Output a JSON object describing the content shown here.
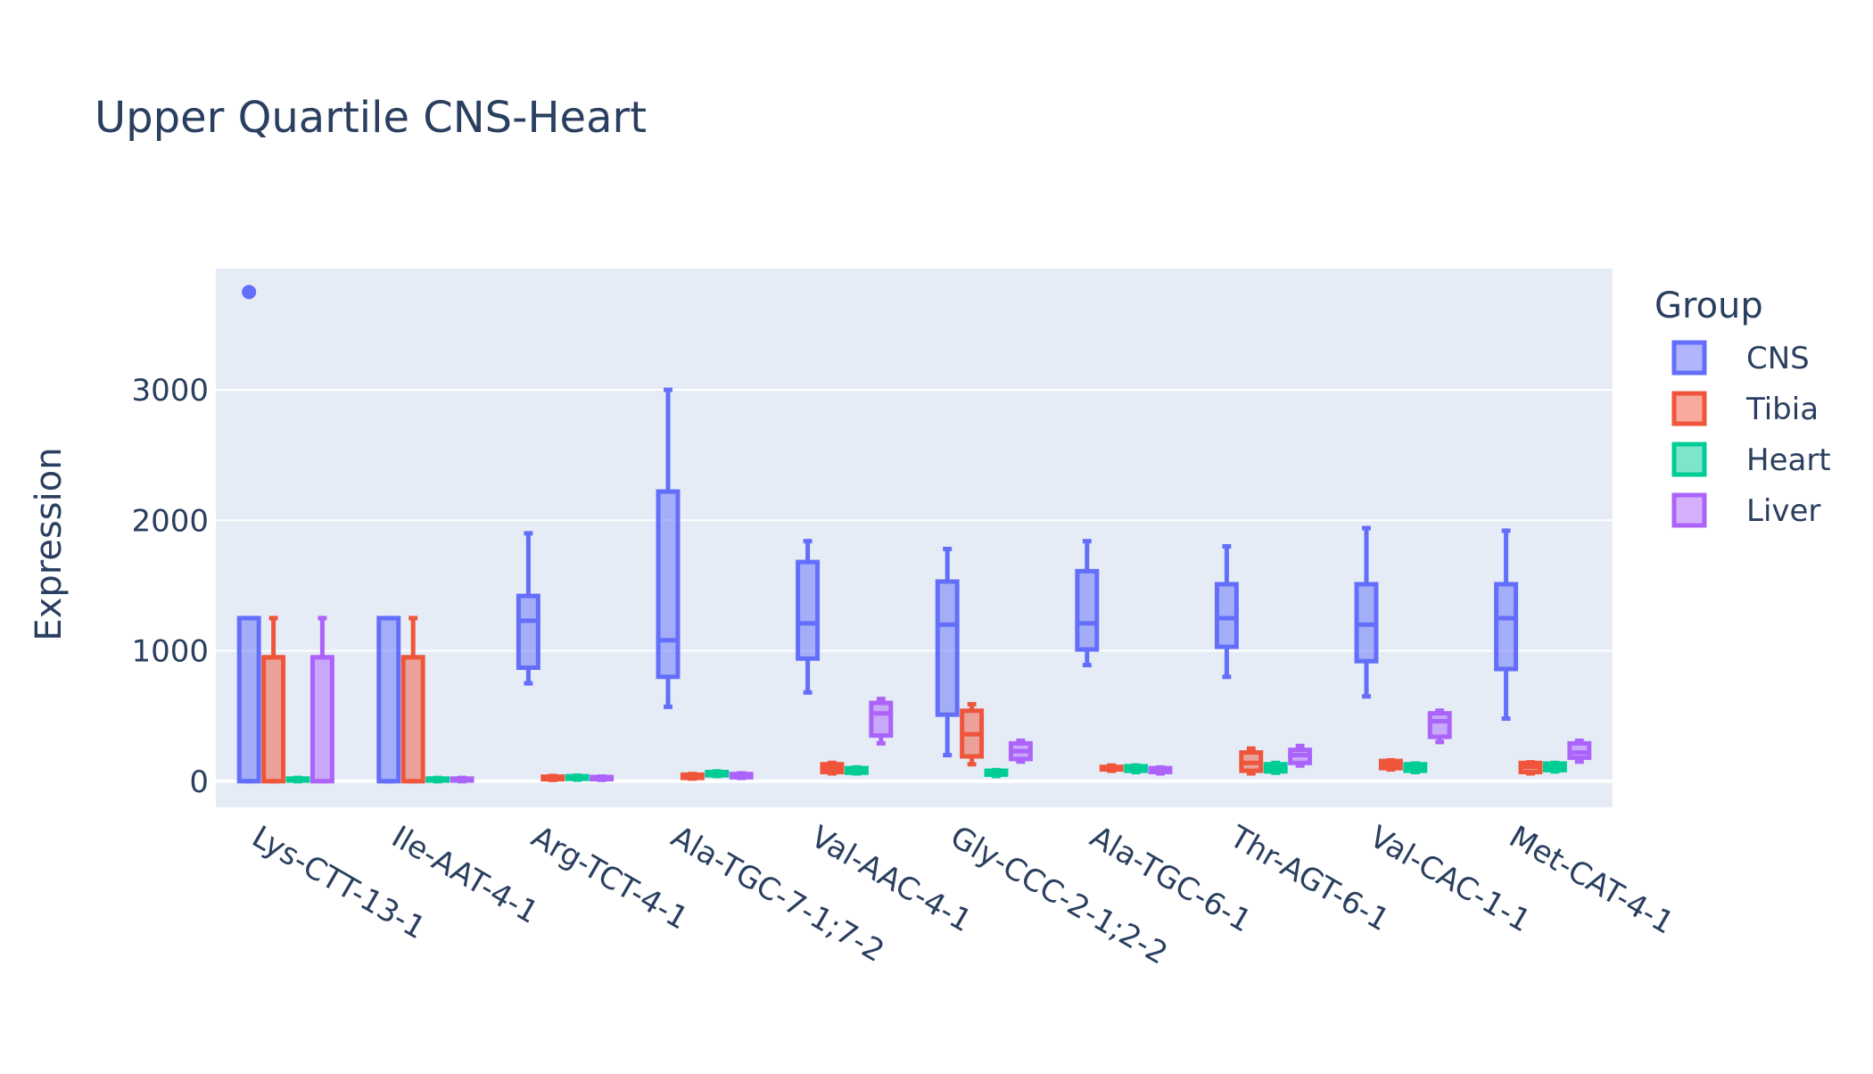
{
  "chart_data": {
    "type": "box",
    "title": "Upper Quartile CNS-Heart",
    "xlabel": "",
    "ylabel": "Expression",
    "ylim": [
      -200,
      3930
    ],
    "yticks": [
      0,
      1000,
      2000,
      3000
    ],
    "grid": true,
    "legend": {
      "title": "Group",
      "position": "right",
      "entries": [
        "CNS",
        "Tibia",
        "Heart",
        "Liver"
      ]
    },
    "categories": [
      "Lys-CTT-13-1",
      "Ile-AAT-4-1",
      "Arg-TCT-4-1",
      "Ala-TGC-7-1;7-2",
      "Val-AAC-4-1",
      "Gly-CCC-2-1;2-2",
      "Ala-TGC-6-1",
      "Thr-AGT-6-1",
      "Val-CAC-1-1",
      "Met-CAT-4-1"
    ],
    "series": [
      {
        "name": "CNS",
        "color": "#636efa",
        "boxes": [
          {
            "min": 0,
            "q1": 0,
            "median": 1250,
            "q3": 1250,
            "max": 1250,
            "outliers": [
              3750
            ]
          },
          {
            "min": 0,
            "q1": 0,
            "median": 1250,
            "q3": 1250,
            "max": 1250,
            "outliers": []
          },
          {
            "min": 750,
            "q1": 870,
            "median": 1230,
            "q3": 1420,
            "max": 1900,
            "outliers": []
          },
          {
            "min": 570,
            "q1": 800,
            "median": 1080,
            "q3": 2220,
            "max": 3000,
            "outliers": []
          },
          {
            "min": 680,
            "q1": 940,
            "median": 1210,
            "q3": 1680,
            "max": 1840,
            "outliers": []
          },
          {
            "min": 200,
            "q1": 510,
            "median": 1200,
            "q3": 1530,
            "max": 1780,
            "outliers": []
          },
          {
            "min": 890,
            "q1": 1010,
            "median": 1210,
            "q3": 1610,
            "max": 1840,
            "outliers": []
          },
          {
            "min": 800,
            "q1": 1030,
            "median": 1250,
            "q3": 1510,
            "max": 1800,
            "outliers": []
          },
          {
            "min": 650,
            "q1": 920,
            "median": 1200,
            "q3": 1510,
            "max": 1940,
            "outliers": []
          },
          {
            "min": 480,
            "q1": 860,
            "median": 1250,
            "q3": 1510,
            "max": 1920,
            "outliers": []
          }
        ]
      },
      {
        "name": "Tibia",
        "color": "#ef553b",
        "boxes": [
          {
            "min": 0,
            "q1": 0,
            "median": 950,
            "q3": 950,
            "max": 1250,
            "outliers": []
          },
          {
            "min": 0,
            "q1": 0,
            "median": 950,
            "q3": 950,
            "max": 1250,
            "outliers": []
          },
          {
            "min": 10,
            "q1": 15,
            "median": 25,
            "q3": 35,
            "max": 40,
            "outliers": []
          },
          {
            "min": 20,
            "q1": 25,
            "median": 40,
            "q3": 50,
            "max": 55,
            "outliers": []
          },
          {
            "min": 60,
            "q1": 70,
            "median": 100,
            "q3": 130,
            "max": 140,
            "outliers": []
          },
          {
            "min": 130,
            "q1": 190,
            "median": 360,
            "q3": 540,
            "max": 590,
            "outliers": []
          },
          {
            "min": 80,
            "q1": 90,
            "median": 100,
            "q3": 110,
            "max": 120,
            "outliers": []
          },
          {
            "min": 60,
            "q1": 80,
            "median": 140,
            "q3": 220,
            "max": 250,
            "outliers": []
          },
          {
            "min": 90,
            "q1": 100,
            "median": 130,
            "q3": 155,
            "max": 160,
            "outliers": []
          },
          {
            "min": 60,
            "q1": 70,
            "median": 110,
            "q3": 140,
            "max": 145,
            "outliers": []
          }
        ]
      },
      {
        "name": "Heart",
        "color": "#00cc96",
        "boxes": [
          {
            "min": 0,
            "q1": 5,
            "median": 12,
            "q3": 20,
            "max": 25,
            "outliers": []
          },
          {
            "min": 0,
            "q1": 5,
            "median": 12,
            "q3": 20,
            "max": 25,
            "outliers": []
          },
          {
            "min": 12,
            "q1": 18,
            "median": 28,
            "q3": 38,
            "max": 42,
            "outliers": []
          },
          {
            "min": 40,
            "q1": 45,
            "median": 60,
            "q3": 70,
            "max": 75,
            "outliers": []
          },
          {
            "min": 60,
            "q1": 65,
            "median": 85,
            "q3": 100,
            "max": 105,
            "outliers": []
          },
          {
            "min": 40,
            "q1": 50,
            "median": 65,
            "q3": 80,
            "max": 85,
            "outliers": []
          },
          {
            "min": 70,
            "q1": 80,
            "median": 100,
            "q3": 115,
            "max": 120,
            "outliers": []
          },
          {
            "min": 65,
            "q1": 75,
            "median": 100,
            "q3": 130,
            "max": 140,
            "outliers": []
          },
          {
            "min": 70,
            "q1": 80,
            "median": 100,
            "q3": 130,
            "max": 135,
            "outliers": []
          },
          {
            "min": 75,
            "q1": 85,
            "median": 110,
            "q3": 135,
            "max": 140,
            "outliers": []
          }
        ]
      },
      {
        "name": "Liver",
        "color": "#ab63fa",
        "boxes": [
          {
            "min": 0,
            "q1": 0,
            "median": 950,
            "q3": 950,
            "max": 1250,
            "outliers": []
          },
          {
            "min": 0,
            "q1": 5,
            "median": 10,
            "q3": 20,
            "max": 25,
            "outliers": []
          },
          {
            "min": 10,
            "q1": 15,
            "median": 25,
            "q3": 32,
            "max": 35,
            "outliers": []
          },
          {
            "min": 25,
            "q1": 30,
            "median": 45,
            "q3": 55,
            "max": 60,
            "outliers": []
          },
          {
            "min": 290,
            "q1": 350,
            "median": 520,
            "q3": 600,
            "max": 630,
            "outliers": []
          },
          {
            "min": 150,
            "q1": 170,
            "median": 230,
            "q3": 290,
            "max": 310,
            "outliers": []
          },
          {
            "min": 60,
            "q1": 70,
            "median": 85,
            "q3": 100,
            "max": 105,
            "outliers": []
          },
          {
            "min": 120,
            "q1": 140,
            "median": 200,
            "q3": 240,
            "max": 270,
            "outliers": []
          },
          {
            "min": 300,
            "q1": 340,
            "median": 460,
            "q3": 520,
            "max": 540,
            "outliers": []
          },
          {
            "min": 150,
            "q1": 180,
            "median": 220,
            "q3": 290,
            "max": 310,
            "outliers": []
          }
        ]
      }
    ]
  }
}
